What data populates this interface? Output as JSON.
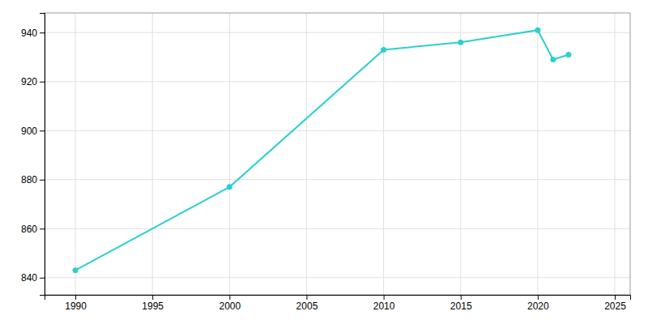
{
  "chart_data": {
    "type": "line",
    "x": [
      1990,
      2000,
      2010,
      2015,
      2020,
      2021,
      2022
    ],
    "values": [
      843,
      877,
      933,
      936,
      941,
      929,
      931
    ],
    "color": "#2DCFCF",
    "marker": "circle",
    "xlim": [
      1988,
      2026
    ],
    "ylim": [
      833,
      948
    ],
    "xticks": [
      1990,
      1995,
      2000,
      2005,
      2010,
      2015,
      2020,
      2025
    ],
    "yticks": [
      840,
      860,
      880,
      900,
      920,
      940
    ],
    "grid": true
  }
}
